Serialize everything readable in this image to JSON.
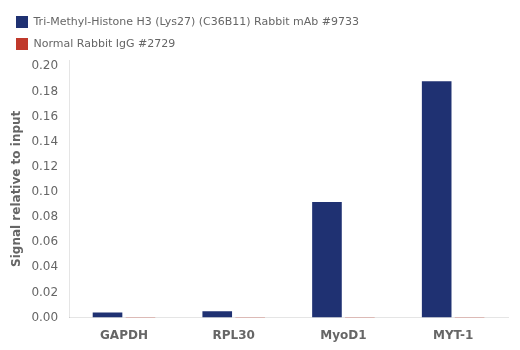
{
  "chart_data": {
    "type": "bar",
    "categories": [
      "GAPDH",
      "RPL30",
      "MyoD1",
      "MYT-1"
    ],
    "series": [
      {
        "name": "Tri-Methyl-Histone H3 (Lys27) (C36B11) Rabbit mAb #9733",
        "color": "#1f3172",
        "values": [
          0.004,
          0.005,
          0.092,
          0.188
        ]
      },
      {
        "name": "Normal Rabbit IgG #2729",
        "color": "#c0392b",
        "values": [
          0.0005,
          0.0005,
          0.0005,
          0.0005
        ]
      }
    ],
    "ylabel": "Signal relative to input",
    "ylim": [
      0,
      0.205
    ],
    "yticks": [
      {
        "value": 0,
        "label": "0.00"
      },
      0.02,
      0.04,
      0.06,
      0.08,
      {
        "value": 0.1,
        "label": "0.10"
      },
      0.12,
      0.14,
      0.16,
      0.18,
      {
        "value": 0.2,
        "label": "0.20"
      }
    ],
    "grid": false,
    "legend": "top"
  }
}
